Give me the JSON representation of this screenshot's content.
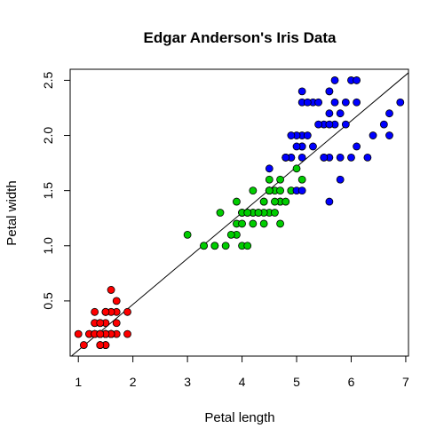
{
  "chart_data": {
    "type": "scatter",
    "title": "Edgar Anderson's Iris Data",
    "xlabel": "Petal length",
    "ylabel": "Petal width",
    "xlim": [
      0.85,
      7.05
    ],
    "ylim": [
      0.0,
      2.6
    ],
    "x_ticks": [
      1,
      2,
      3,
      4,
      5,
      6,
      7
    ],
    "y_ticks": [
      0.5,
      1.0,
      1.5,
      2.0,
      2.5
    ],
    "x_tick_labels": [
      "1",
      "2",
      "3",
      "4",
      "5",
      "6",
      "7"
    ],
    "y_tick_labels": [
      "0.5",
      "1.0",
      "1.5",
      "2.0",
      "2.5"
    ],
    "grid": false,
    "legend": "none",
    "reference_line": {
      "intercept": -0.3631,
      "slope": 0.4158,
      "color": "#000000"
    },
    "series": [
      {
        "color": "#ff0000",
        "points": [
          [
            1.4,
            0.2
          ],
          [
            1.4,
            0.2
          ],
          [
            1.3,
            0.2
          ],
          [
            1.5,
            0.2
          ],
          [
            1.4,
            0.2
          ],
          [
            1.7,
            0.4
          ],
          [
            1.4,
            0.3
          ],
          [
            1.5,
            0.2
          ],
          [
            1.4,
            0.2
          ],
          [
            1.5,
            0.1
          ],
          [
            1.5,
            0.2
          ],
          [
            1.6,
            0.2
          ],
          [
            1.4,
            0.1
          ],
          [
            1.1,
            0.1
          ],
          [
            1.2,
            0.2
          ],
          [
            1.5,
            0.4
          ],
          [
            1.3,
            0.4
          ],
          [
            1.4,
            0.3
          ],
          [
            1.7,
            0.3
          ],
          [
            1.5,
            0.3
          ],
          [
            1.7,
            0.2
          ],
          [
            1.5,
            0.4
          ],
          [
            1.0,
            0.2
          ],
          [
            1.7,
            0.5
          ],
          [
            1.9,
            0.2
          ],
          [
            1.6,
            0.2
          ],
          [
            1.6,
            0.4
          ],
          [
            1.5,
            0.2
          ],
          [
            1.4,
            0.2
          ],
          [
            1.6,
            0.2
          ],
          [
            1.6,
            0.2
          ],
          [
            1.5,
            0.4
          ],
          [
            1.5,
            0.1
          ],
          [
            1.4,
            0.2
          ],
          [
            1.5,
            0.2
          ],
          [
            1.2,
            0.2
          ],
          [
            1.3,
            0.2
          ],
          [
            1.4,
            0.1
          ],
          [
            1.3,
            0.2
          ],
          [
            1.5,
            0.2
          ],
          [
            1.3,
            0.3
          ],
          [
            1.3,
            0.3
          ],
          [
            1.3,
            0.2
          ],
          [
            1.6,
            0.6
          ],
          [
            1.9,
            0.4
          ],
          [
            1.4,
            0.3
          ],
          [
            1.6,
            0.2
          ],
          [
            1.4,
            0.2
          ],
          [
            1.5,
            0.2
          ],
          [
            1.4,
            0.2
          ]
        ]
      },
      {
        "color": "#00cd00",
        "points": [
          [
            4.7,
            1.4
          ],
          [
            4.5,
            1.5
          ],
          [
            4.9,
            1.5
          ],
          [
            4.0,
            1.3
          ],
          [
            4.6,
            1.5
          ],
          [
            4.5,
            1.3
          ],
          [
            4.7,
            1.6
          ],
          [
            3.3,
            1.0
          ],
          [
            4.6,
            1.3
          ],
          [
            3.9,
            1.4
          ],
          [
            3.5,
            1.0
          ],
          [
            4.2,
            1.5
          ],
          [
            4.0,
            1.0
          ],
          [
            4.7,
            1.4
          ],
          [
            3.6,
            1.3
          ],
          [
            4.4,
            1.4
          ],
          [
            4.5,
            1.5
          ],
          [
            4.1,
            1.0
          ],
          [
            4.5,
            1.5
          ],
          [
            3.9,
            1.1
          ],
          [
            4.8,
            1.8
          ],
          [
            4.0,
            1.3
          ],
          [
            4.9,
            1.5
          ],
          [
            4.7,
            1.2
          ],
          [
            4.3,
            1.3
          ],
          [
            4.4,
            1.4
          ],
          [
            4.8,
            1.4
          ],
          [
            5.0,
            1.7
          ],
          [
            4.5,
            1.5
          ],
          [
            3.5,
            1.0
          ],
          [
            3.8,
            1.1
          ],
          [
            3.7,
            1.0
          ],
          [
            3.9,
            1.2
          ],
          [
            5.1,
            1.6
          ],
          [
            4.5,
            1.5
          ],
          [
            4.5,
            1.6
          ],
          [
            4.7,
            1.5
          ],
          [
            4.4,
            1.3
          ],
          [
            4.1,
            1.3
          ],
          [
            4.0,
            1.3
          ],
          [
            4.4,
            1.2
          ],
          [
            4.6,
            1.4
          ],
          [
            4.0,
            1.2
          ],
          [
            3.3,
            1.0
          ],
          [
            4.2,
            1.3
          ],
          [
            4.2,
            1.2
          ],
          [
            4.2,
            1.3
          ],
          [
            4.3,
            1.3
          ],
          [
            3.0,
            1.1
          ],
          [
            4.1,
            1.3
          ]
        ]
      },
      {
        "color": "#0000ff",
        "points": [
          [
            6.0,
            2.5
          ],
          [
            5.1,
            1.9
          ],
          [
            5.9,
            2.1
          ],
          [
            5.6,
            1.8
          ],
          [
            5.8,
            2.2
          ],
          [
            6.6,
            2.1
          ],
          [
            4.5,
            1.7
          ],
          [
            6.3,
            1.8
          ],
          [
            5.8,
            1.8
          ],
          [
            6.1,
            2.5
          ],
          [
            5.1,
            2.0
          ],
          [
            5.3,
            1.9
          ],
          [
            5.5,
            2.1
          ],
          [
            5.0,
            2.0
          ],
          [
            5.1,
            2.4
          ],
          [
            5.3,
            2.3
          ],
          [
            5.5,
            1.8
          ],
          [
            6.7,
            2.2
          ],
          [
            6.9,
            2.3
          ],
          [
            5.0,
            1.5
          ],
          [
            5.7,
            2.3
          ],
          [
            4.9,
            2.0
          ],
          [
            6.7,
            2.0
          ],
          [
            4.9,
            1.8
          ],
          [
            5.7,
            2.1
          ],
          [
            6.0,
            1.8
          ],
          [
            4.8,
            1.8
          ],
          [
            4.9,
            1.8
          ],
          [
            5.6,
            2.1
          ],
          [
            5.8,
            1.6
          ],
          [
            6.1,
            1.9
          ],
          [
            6.4,
            2.0
          ],
          [
            5.6,
            2.2
          ],
          [
            5.1,
            1.5
          ],
          [
            5.6,
            1.4
          ],
          [
            6.1,
            2.3
          ],
          [
            5.6,
            2.4
          ],
          [
            5.5,
            1.8
          ],
          [
            4.8,
            1.8
          ],
          [
            5.4,
            2.1
          ],
          [
            5.6,
            2.4
          ],
          [
            5.1,
            2.3
          ],
          [
            5.1,
            1.9
          ],
          [
            5.9,
            2.3
          ],
          [
            5.7,
            2.5
          ],
          [
            5.2,
            2.3
          ],
          [
            5.0,
            1.9
          ],
          [
            5.2,
            2.0
          ],
          [
            5.4,
            2.3
          ],
          [
            5.1,
            1.8
          ]
        ]
      }
    ]
  }
}
